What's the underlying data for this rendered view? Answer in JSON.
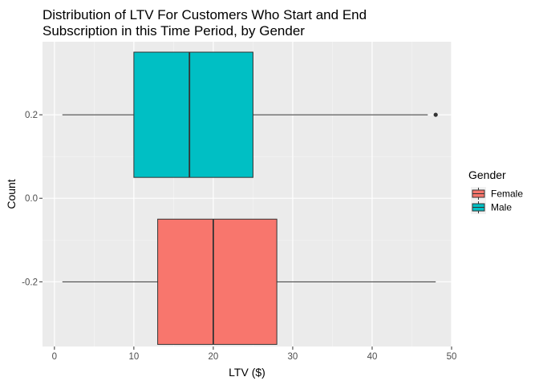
{
  "chart_data": {
    "type": "boxplot",
    "orientation": "horizontal",
    "title": "Distribution of LTV For Customers Who Start and End Subscription in this Time Period, by Gender",
    "title_lines": [
      "Distribution of LTV For Customers Who Start and End",
      "Subscription in this Time Period, by Gender"
    ],
    "xlabel": "LTV ($)",
    "ylabel": "Count",
    "xlim": [
      -1.5,
      50
    ],
    "ylim": [
      -0.355,
      0.375
    ],
    "x_ticks": [
      0,
      10,
      20,
      30,
      40,
      50
    ],
    "x_tick_labels": [
      "0",
      "10",
      "20",
      "30",
      "40",
      "50"
    ],
    "y_ticks": [
      -0.2,
      0.0,
      0.2
    ],
    "y_tick_labels": [
      "-0.2",
      "0.0",
      "0.2"
    ],
    "grid": true,
    "legend": {
      "title": "Gender",
      "position": "right",
      "entries": [
        {
          "label": "Female",
          "color": "#F8766D"
        },
        {
          "label": "Male",
          "color": "#00BFC4"
        }
      ]
    },
    "series": [
      {
        "name": "Female",
        "color": "#F8766D",
        "y_center": -0.2,
        "box_half_height": 0.15,
        "whisker_low": 1,
        "q1": 13,
        "median": 20,
        "q3": 28,
        "whisker_high": 48,
        "outliers": []
      },
      {
        "name": "Male",
        "color": "#00BFC4",
        "y_center": 0.2,
        "box_half_height": 0.15,
        "whisker_low": 1,
        "q1": 10,
        "median": 17,
        "q3": 25,
        "whisker_high": 47,
        "outliers": [
          48
        ]
      }
    ],
    "colors": {
      "panel_background": "#EBEBEB",
      "grid_major": "#FFFFFF",
      "grid_minor": "#F5F5F5",
      "box_outline": "#333333",
      "tick_text": "#4D4D4D"
    }
  }
}
